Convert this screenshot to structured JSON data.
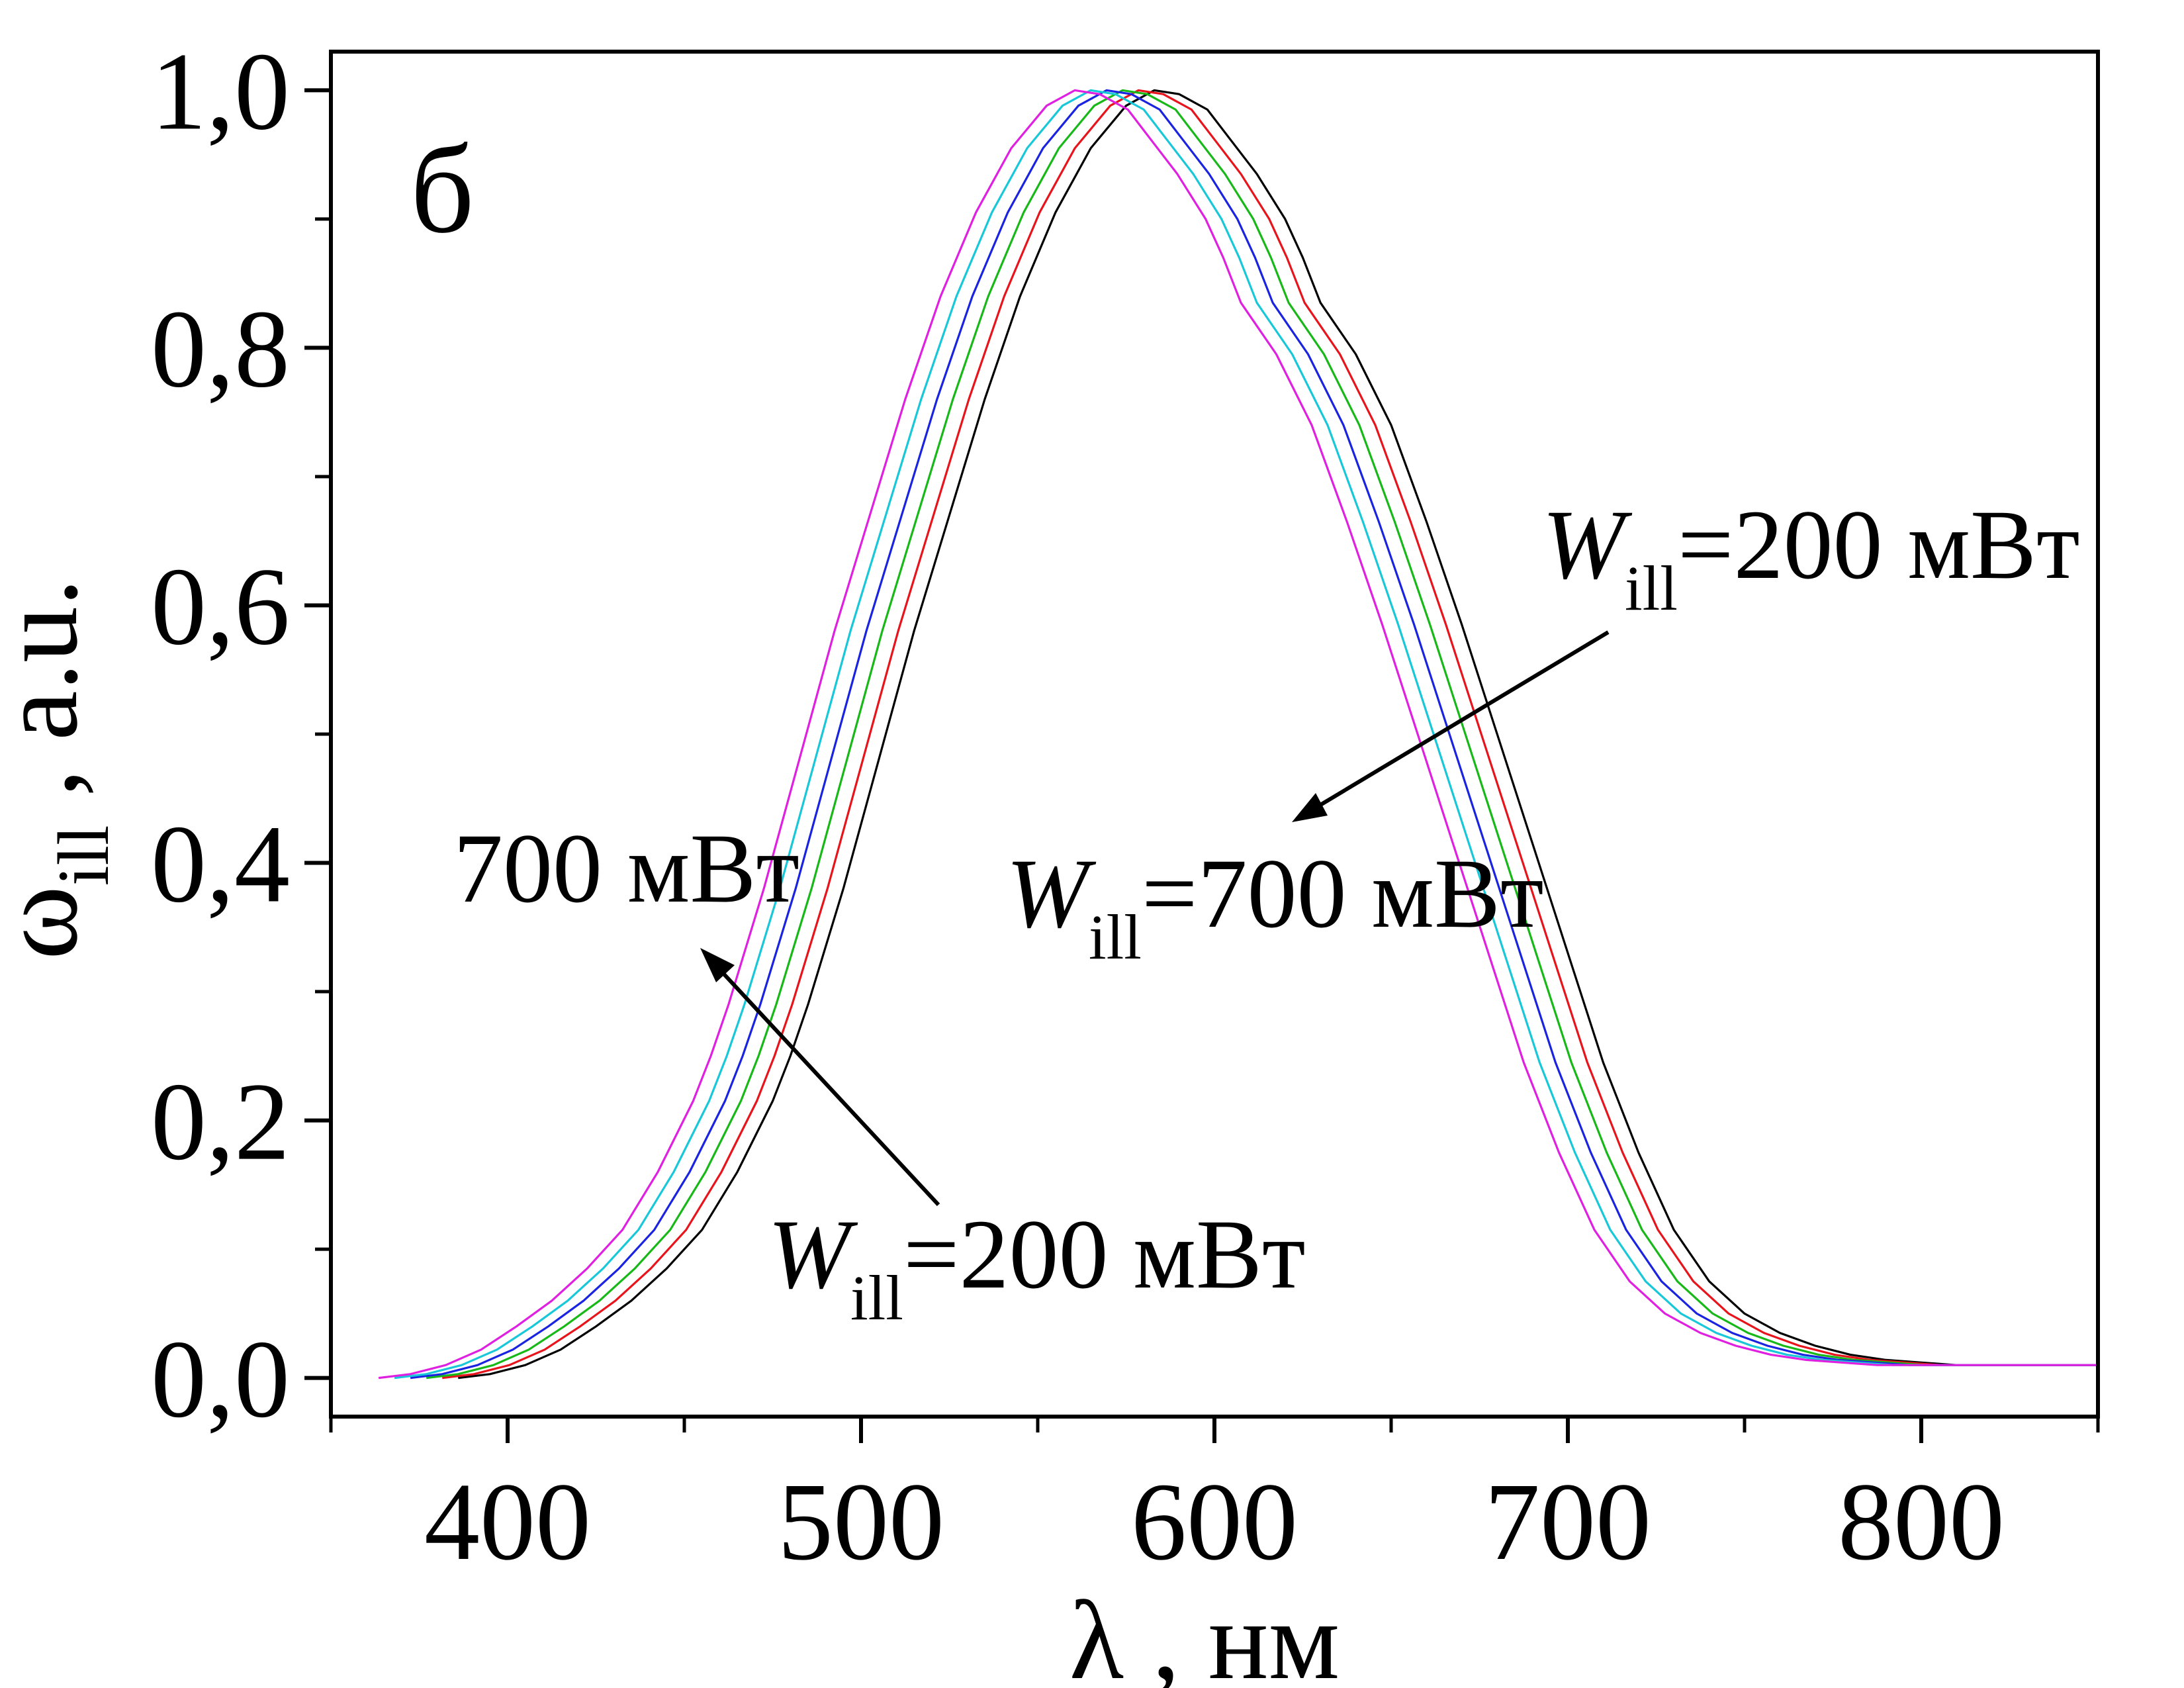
{
  "chart_data": {
    "type": "line",
    "panel_label": "б",
    "xlabel": "λ ,  нм",
    "ylabel_main": "ω",
    "ylabel_sub": "ill",
    "ylabel_rest": " ,  a.u.",
    "xlim": [
      350,
      850
    ],
    "ylim": [
      -0.03,
      1.03
    ],
    "x_ticks": [
      400,
      500,
      600,
      700,
      800
    ],
    "x_tick_labels": [
      "400",
      "500",
      "600",
      "700",
      "800"
    ],
    "x_minor_ticks": [
      350,
      450,
      550,
      650,
      750,
      850
    ],
    "y_ticks": [
      0,
      0.2,
      0.4,
      0.6,
      0.8,
      1.0
    ],
    "y_tick_labels": [
      "0,0",
      "0,2",
      "0,4",
      "0,6",
      "0,8",
      "1,0"
    ],
    "y_minor_ticks": [
      0.1,
      0.3,
      0.5,
      0.7,
      0.9
    ],
    "grid": false,
    "series_colors": [
      "#000000",
      "#e8141c",
      "#18b818",
      "#1a24e0",
      "#18c8d8",
      "#e020e0"
    ],
    "shift_per_series_nm": -4.5,
    "base_curve": {
      "x": [
        386,
        395,
        405,
        415,
        425,
        435,
        445,
        455,
        465,
        475,
        480,
        485,
        495,
        505,
        515,
        525,
        535,
        545,
        555,
        565,
        575,
        583,
        590,
        598,
        605,
        612,
        620,
        625,
        630,
        640,
        650,
        660,
        670,
        680,
        690,
        700,
        710,
        720,
        730,
        740,
        750,
        760,
        770,
        780,
        790,
        800,
        810,
        820,
        830,
        840,
        850
      ],
      "y": [
        0.0,
        0.003,
        0.01,
        0.022,
        0.04,
        0.06,
        0.085,
        0.115,
        0.16,
        0.215,
        0.25,
        0.29,
        0.38,
        0.48,
        0.58,
        0.67,
        0.76,
        0.84,
        0.905,
        0.955,
        0.988,
        1.0,
        0.997,
        0.985,
        0.96,
        0.935,
        0.9,
        0.87,
        0.835,
        0.795,
        0.74,
        0.665,
        0.585,
        0.5,
        0.415,
        0.33,
        0.245,
        0.175,
        0.115,
        0.075,
        0.05,
        0.035,
        0.025,
        0.018,
        0.014,
        0.012,
        0.01,
        0.01,
        0.01,
        0.01,
        0.01
      ]
    },
    "annotations": {
      "left_top": "700 мВт",
      "left_bottom_w": "W",
      "left_bottom_sub": "ill",
      "left_bottom_rest": "=200 мВт",
      "right_top_w": "W",
      "right_top_sub": "ill",
      "right_top_rest": "=200 мВт",
      "right_bottom_w": "W",
      "right_bottom_sub": "ill",
      "right_bottom_rest": "=700 мВт"
    }
  }
}
